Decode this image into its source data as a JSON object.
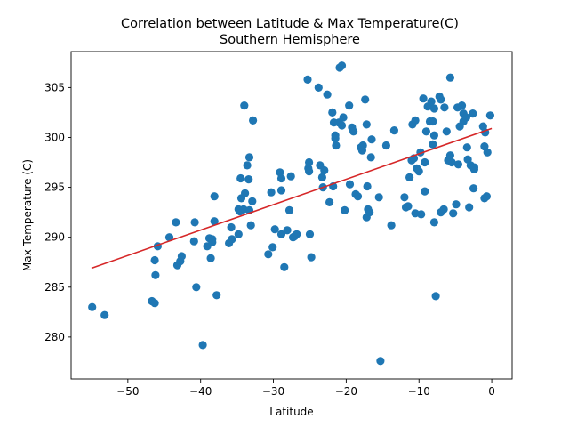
{
  "chart_data": {
    "type": "scatter",
    "title": "Correlation between Latitude & Max Temperature(C)",
    "subtitle": "Southern Hemisphere",
    "xlabel": "Latitude",
    "ylabel": "Max Temperature (C)",
    "xlim": [
      -57.8,
      2.8
    ],
    "ylim": [
      275.8,
      308.6
    ],
    "xticks": [
      -50,
      -40,
      -30,
      -20,
      -10,
      0
    ],
    "xtick_labels": [
      "−50",
      "−40",
      "−30",
      "−20",
      "−10",
      "0"
    ],
    "yticks": [
      280,
      285,
      290,
      295,
      300,
      305
    ],
    "ytick_labels": [
      "280",
      "285",
      "290",
      "295",
      "300",
      "305"
    ],
    "grid": false,
    "point_color": "#1f77b4",
    "line_color": "#d62728",
    "regression": {
      "x": [
        -55,
        0
      ],
      "y": [
        286.9,
        300.9
      ]
    },
    "points": [
      [
        -54.9,
        283.0
      ],
      [
        -53.2,
        282.2
      ],
      [
        -46.7,
        283.6
      ],
      [
        -46.3,
        283.4
      ],
      [
        -46.2,
        286.2
      ],
      [
        -46.3,
        287.7
      ],
      [
        -45.9,
        289.1
      ],
      [
        -44.3,
        290.0
      ],
      [
        -43.4,
        291.5
      ],
      [
        -43.2,
        287.2
      ],
      [
        -42.8,
        287.6
      ],
      [
        -42.6,
        288.1
      ],
      [
        -40.8,
        291.5
      ],
      [
        -40.9,
        289.6
      ],
      [
        -40.6,
        285.0
      ],
      [
        -39.7,
        279.2
      ],
      [
        -39.1,
        289.1
      ],
      [
        -38.8,
        289.9
      ],
      [
        -38.4,
        289.5
      ],
      [
        -38.6,
        287.9
      ],
      [
        -38.4,
        289.8
      ],
      [
        -38.1,
        291.6
      ],
      [
        -38.1,
        294.1
      ],
      [
        -37.8,
        284.2
      ],
      [
        -36.1,
        289.4
      ],
      [
        -35.8,
        291.0
      ],
      [
        -35.7,
        289.8
      ],
      [
        -34.8,
        290.3
      ],
      [
        -34.8,
        292.8
      ],
      [
        -34.6,
        292.6
      ],
      [
        -34.4,
        293.9
      ],
      [
        -34.5,
        295.9
      ],
      [
        -34.1,
        292.8
      ],
      [
        -34.0,
        303.2
      ],
      [
        -33.9,
        294.4
      ],
      [
        -33.6,
        297.2
      ],
      [
        -33.3,
        298.0
      ],
      [
        -33.4,
        295.8
      ],
      [
        -33.3,
        292.7
      ],
      [
        -33.1,
        291.2
      ],
      [
        -32.8,
        301.7
      ],
      [
        -32.9,
        293.6
      ],
      [
        -30.7,
        288.3
      ],
      [
        -30.3,
        294.5
      ],
      [
        -30.1,
        289.0
      ],
      [
        -29.8,
        290.8
      ],
      [
        -29.1,
        296.5
      ],
      [
        -28.9,
        295.9
      ],
      [
        -28.9,
        294.7
      ],
      [
        -28.9,
        290.3
      ],
      [
        -28.5,
        287.0
      ],
      [
        -28.1,
        290.7
      ],
      [
        -27.8,
        292.7
      ],
      [
        -27.6,
        296.1
      ],
      [
        -27.3,
        290.0
      ],
      [
        -27.1,
        290.1
      ],
      [
        -26.8,
        290.3
      ],
      [
        -25.3,
        305.8
      ],
      [
        -25.2,
        296.9
      ],
      [
        -25.1,
        297.5
      ],
      [
        -25.1,
        296.6
      ],
      [
        -25.0,
        290.3
      ],
      [
        -24.8,
        288.0
      ],
      [
        -23.8,
        305.0
      ],
      [
        -23.6,
        297.2
      ],
      [
        -23.3,
        296.0
      ],
      [
        -23.2,
        295.0
      ],
      [
        -23.0,
        296.7
      ],
      [
        -22.6,
        304.3
      ],
      [
        -22.3,
        293.5
      ],
      [
        -21.9,
        302.5
      ],
      [
        -21.7,
        301.5
      ],
      [
        -21.8,
        295.1
      ],
      [
        -21.5,
        300.2
      ],
      [
        -21.5,
        299.9
      ],
      [
        -21.4,
        299.2
      ],
      [
        -21.0,
        301.5
      ],
      [
        -20.9,
        307.0
      ],
      [
        -20.6,
        307.2
      ],
      [
        -20.6,
        301.2
      ],
      [
        -20.4,
        302.0
      ],
      [
        -20.2,
        292.7
      ],
      [
        -19.6,
        303.2
      ],
      [
        -19.5,
        295.3
      ],
      [
        -19.2,
        301.0
      ],
      [
        -19.0,
        300.6
      ],
      [
        -18.7,
        294.3
      ],
      [
        -18.4,
        294.1
      ],
      [
        -18.0,
        299.0
      ],
      [
        -17.8,
        298.7
      ],
      [
        -17.7,
        299.2
      ],
      [
        -17.4,
        303.8
      ],
      [
        -17.2,
        301.3
      ],
      [
        -17.2,
        292.0
      ],
      [
        -17.0,
        292.8
      ],
      [
        -16.8,
        292.5
      ],
      [
        -17.1,
        295.1
      ],
      [
        -16.6,
        298.0
      ],
      [
        -16.5,
        299.8
      ],
      [
        -15.3,
        277.6
      ],
      [
        -15.5,
        294.0
      ],
      [
        -14.5,
        299.2
      ],
      [
        -13.8,
        291.2
      ],
      [
        -13.4,
        300.7
      ],
      [
        -12.0,
        294.0
      ],
      [
        -11.8,
        293.0
      ],
      [
        -11.5,
        293.1
      ],
      [
        -11.3,
        296.0
      ],
      [
        -11.0,
        297.7
      ],
      [
        -10.9,
        301.3
      ],
      [
        -10.5,
        301.7
      ],
      [
        -10.7,
        297.9
      ],
      [
        -10.5,
        292.4
      ],
      [
        -10.3,
        296.9
      ],
      [
        -10.0,
        296.6
      ],
      [
        -9.8,
        298.5
      ],
      [
        -9.7,
        292.3
      ],
      [
        -9.4,
        303.9
      ],
      [
        -9.2,
        294.6
      ],
      [
        -9.2,
        297.5
      ],
      [
        -9.0,
        300.6
      ],
      [
        -8.8,
        303.1
      ],
      [
        -8.5,
        301.6
      ],
      [
        -8.3,
        303.6
      ],
      [
        -8.1,
        301.6
      ],
      [
        -7.9,
        302.9
      ],
      [
        -7.9,
        291.5
      ],
      [
        -7.7,
        284.1
      ],
      [
        -8.1,
        299.3
      ],
      [
        -7.9,
        300.2
      ],
      [
        -7.2,
        304.1
      ],
      [
        -7.0,
        303.8
      ],
      [
        -7.0,
        292.5
      ],
      [
        -6.6,
        292.8
      ],
      [
        -6.5,
        303.0
      ],
      [
        -6.2,
        300.6
      ],
      [
        -6.0,
        297.7
      ],
      [
        -5.7,
        306.0
      ],
      [
        -5.7,
        298.2
      ],
      [
        -5.5,
        297.5
      ],
      [
        -5.3,
        292.4
      ],
      [
        -4.9,
        293.3
      ],
      [
        -4.7,
        303.0
      ],
      [
        -4.6,
        297.3
      ],
      [
        -4.4,
        301.1
      ],
      [
        -4.1,
        303.2
      ],
      [
        -3.9,
        302.4
      ],
      [
        -3.9,
        301.6
      ],
      [
        -3.5,
        302.0
      ],
      [
        -3.4,
        299.0
      ],
      [
        -3.3,
        297.8
      ],
      [
        -3.1,
        293.0
      ],
      [
        -2.9,
        297.2
      ],
      [
        -2.6,
        302.4
      ],
      [
        -2.5,
        294.9
      ],
      [
        -2.4,
        296.8
      ],
      [
        -2.4,
        297.0
      ],
      [
        -1.2,
        301.1
      ],
      [
        -0.9,
        300.5
      ],
      [
        -1.0,
        299.1
      ],
      [
        -1.0,
        293.9
      ],
      [
        -0.7,
        294.1
      ],
      [
        -0.6,
        298.5
      ],
      [
        -0.2,
        302.2
      ]
    ]
  }
}
